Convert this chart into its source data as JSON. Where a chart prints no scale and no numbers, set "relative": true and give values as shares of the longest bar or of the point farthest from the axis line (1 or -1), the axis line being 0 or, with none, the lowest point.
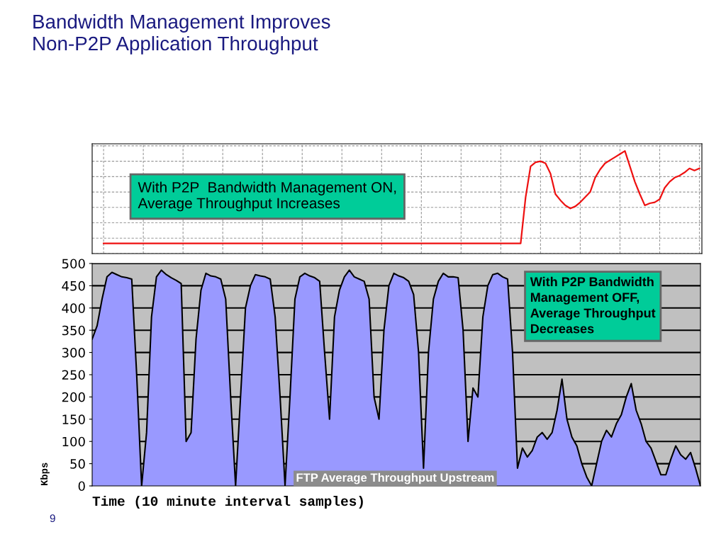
{
  "chart_data": [
    {
      "type": "line",
      "title": "Bandwidth Management Improves\nNon-P2P Application Throughput",
      "relative": true,
      "grid": true,
      "legend": false,
      "marker": "none",
      "line_style": "solid",
      "tick_labels": false,
      "categories": [
        null,
        null,
        null,
        null,
        null,
        null,
        null,
        null,
        null,
        null,
        null,
        null,
        null,
        null,
        null,
        null,
        null,
        null,
        null,
        null,
        null,
        null,
        null,
        null,
        null,
        null,
        null,
        null,
        null,
        null,
        null,
        null,
        null,
        null,
        null,
        null,
        null,
        null,
        null,
        null,
        null,
        null,
        null,
        null,
        null,
        null,
        null,
        null,
        null,
        null,
        null,
        null,
        null,
        null,
        null,
        null,
        null,
        null,
        null,
        null,
        null,
        null,
        null,
        null,
        null,
        null,
        null,
        null,
        null,
        null,
        null,
        null,
        null,
        null,
        null,
        null,
        null,
        null,
        null,
        null,
        null,
        null,
        null,
        null,
        null,
        null,
        null,
        null,
        null,
        null,
        null,
        null,
        null,
        null,
        null,
        null,
        null,
        null,
        null,
        null,
        null,
        null,
        null,
        null,
        null,
        null,
        null,
        null,
        null,
        null,
        null,
        null,
        null,
        null,
        null,
        null,
        null,
        null,
        null,
        null,
        null
      ],
      "series": [
        {
          "color": "#ee1111",
          "values": [
            0.1,
            0.1,
            0.1,
            0.1,
            0.1,
            0.1,
            0.1,
            0.1,
            0.1,
            0.1,
            0.1,
            0.1,
            0.1,
            0.1,
            0.1,
            0.1,
            0.1,
            0.1,
            0.1,
            0.1,
            0.1,
            0.1,
            0.1,
            0.1,
            0.1,
            0.1,
            0.1,
            0.1,
            0.1,
            0.1,
            0.1,
            0.1,
            0.1,
            0.1,
            0.1,
            0.1,
            0.1,
            0.1,
            0.1,
            0.1,
            0.1,
            0.1,
            0.1,
            0.1,
            0.1,
            0.1,
            0.1,
            0.1,
            0.1,
            0.1,
            0.1,
            0.1,
            0.1,
            0.1,
            0.1,
            0.1,
            0.1,
            0.1,
            0.1,
            0.1,
            0.1,
            0.1,
            0.1,
            0.1,
            0.1,
            0.1,
            0.1,
            0.1,
            0.1,
            0.1,
            0.1,
            0.1,
            0.1,
            0.1,
            0.1,
            0.1,
            0.1,
            0.1,
            0.1,
            0.1,
            0.1,
            0.1,
            0.1,
            0.1,
            0.1,
            0.55,
            0.85,
            0.89,
            0.9,
            0.88,
            0.78,
            0.58,
            0.52,
            0.47,
            0.44,
            0.46,
            0.5,
            0.55,
            0.6,
            0.74,
            0.82,
            0.88,
            0.91,
            0.94,
            0.97,
            1.0,
            0.85,
            0.7,
            0.58,
            0.47,
            0.49,
            0.5,
            0.53,
            0.64,
            0.7,
            0.74,
            0.76,
            0.79,
            0.83,
            0.81,
            0.83
          ]
        }
      ],
      "annotations": [
        "With P2P  Bandwidth Management ON,\nAverage Throughput Increases"
      ]
    },
    {
      "type": "area",
      "xlabel": "Time (10 minute interval samples)",
      "ylabel": "Kbps",
      "ylim": [
        0,
        500
      ],
      "yticks": [
        0,
        50,
        100,
        150,
        200,
        250,
        300,
        350,
        400,
        450,
        500
      ],
      "grid": "y",
      "legend": false,
      "tick_labels": "y",
      "categories": [
        null,
        null,
        null,
        null,
        null,
        null,
        null,
        null,
        null,
        null,
        null,
        null,
        null,
        null,
        null,
        null,
        null,
        null,
        null,
        null,
        null,
        null,
        null,
        null,
        null,
        null,
        null,
        null,
        null,
        null,
        null,
        null,
        null,
        null,
        null,
        null,
        null,
        null,
        null,
        null,
        null,
        null,
        null,
        null,
        null,
        null,
        null,
        null,
        null,
        null,
        null,
        null,
        null,
        null,
        null,
        null,
        null,
        null,
        null,
        null,
        null,
        null,
        null,
        null,
        null,
        null,
        null,
        null,
        null,
        null,
        null,
        null,
        null,
        null,
        null,
        null,
        null,
        null,
        null,
        null,
        null,
        null,
        null,
        null,
        null,
        null,
        null,
        null,
        null,
        null,
        null,
        null,
        null,
        null,
        null,
        null,
        null,
        null,
        null,
        null,
        null,
        null,
        null,
        null,
        null,
        null,
        null,
        null,
        null,
        null,
        null,
        null,
        null,
        null,
        null,
        null,
        null,
        null,
        null,
        null,
        null,
        null,
        null,
        null
      ],
      "series": [
        {
          "color": "#9999ff",
          "values": [
            330,
            360,
            420,
            470,
            480,
            475,
            470,
            468,
            465,
            250,
            0,
            120,
            380,
            470,
            485,
            475,
            468,
            462,
            455,
            100,
            120,
            330,
            440,
            478,
            472,
            470,
            465,
            420,
            200,
            0,
            200,
            400,
            450,
            475,
            472,
            470,
            465,
            380,
            200,
            0,
            200,
            420,
            470,
            478,
            472,
            468,
            460,
            300,
            150,
            380,
            440,
            470,
            485,
            470,
            465,
            460,
            420,
            200,
            150,
            350,
            450,
            478,
            472,
            468,
            460,
            430,
            300,
            40,
            300,
            420,
            460,
            478,
            470,
            470,
            468,
            350,
            100,
            220,
            200,
            380,
            450,
            475,
            478,
            470,
            465,
            300,
            40,
            85,
            65,
            80,
            110,
            120,
            105,
            120,
            170,
            240,
            150,
            110,
            90,
            50,
            20,
            0,
            50,
            100,
            125,
            110,
            140,
            160,
            200,
            230,
            170,
            140,
            100,
            85,
            55,
            25,
            25,
            60,
            90,
            70,
            60,
            75,
            40,
            0
          ]
        }
      ],
      "annotations": [
        "With P2P Bandwidth\nManagement OFF,\nAverage Throughput\nDecreases",
        "FTP Average Throughput Upstream",
        "9"
      ]
    }
  ]
}
